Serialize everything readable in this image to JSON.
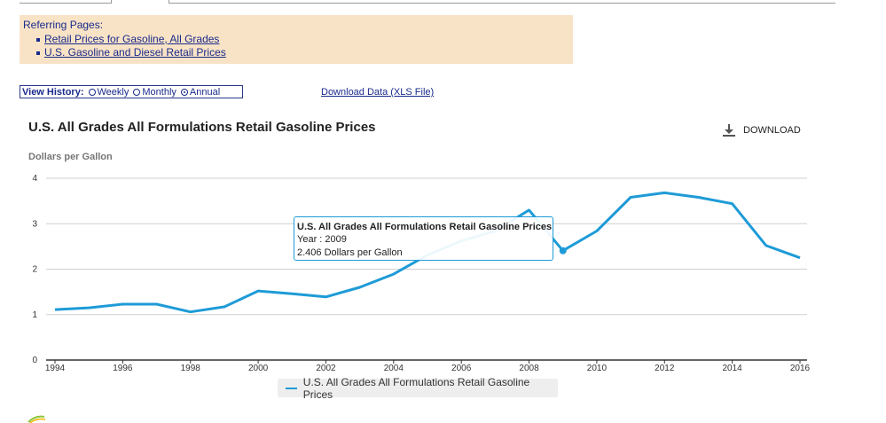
{
  "referring": {
    "title": "Referring Pages:",
    "links": [
      "Retail Prices for Gasoline, All Grades",
      "U.S. Gasoline and Diesel Retail Prices"
    ]
  },
  "view_history": {
    "label": "View History:",
    "options": [
      "Weekly",
      "Monthly",
      "Annual"
    ],
    "selected": "Annual"
  },
  "download_data_link": "Download Data (XLS File)",
  "download_button": "DOWNLOAD",
  "colors": {
    "series": "#1e9bd7",
    "link": "#1a2a8c",
    "referring_bg": "#f8e3c6"
  },
  "tooltip": {
    "title": "U.S. All Grades All Formulations Retail Gasoline Prices",
    "year_line": "Year : 2009",
    "value_line": "2.406 Dollars per Gallon"
  },
  "chart_data": {
    "type": "line",
    "title": "U.S. All Grades All Formulations Retail Gasoline Prices",
    "ylabel": "Dollars per Gallon",
    "xlabel": "",
    "ylim": [
      0,
      4
    ],
    "xlim": [
      1994,
      2016
    ],
    "yticks": [
      0,
      1,
      2,
      3,
      4
    ],
    "xticks": [
      1994,
      1996,
      1998,
      2000,
      2002,
      2004,
      2006,
      2008,
      2010,
      2012,
      2014,
      2016
    ],
    "grid": true,
    "legend": "bottom-center",
    "series": [
      {
        "name": "U.S. All Grades All Formulations Retail Gasoline Prices",
        "x": [
          1994,
          1995,
          1996,
          1997,
          1998,
          1999,
          2000,
          2001,
          2002,
          2003,
          2004,
          2005,
          2006,
          2007,
          2008,
          2009,
          2010,
          2011,
          2012,
          2013,
          2014,
          2015,
          2016
        ],
        "y": [
          1.11,
          1.15,
          1.23,
          1.23,
          1.06,
          1.17,
          1.52,
          1.46,
          1.39,
          1.6,
          1.89,
          2.31,
          2.62,
          2.84,
          3.3,
          2.406,
          2.84,
          3.58,
          3.68,
          3.58,
          3.44,
          2.52,
          2.25
        ]
      }
    ],
    "highlight": {
      "x": 2009,
      "y": 2.406
    }
  }
}
